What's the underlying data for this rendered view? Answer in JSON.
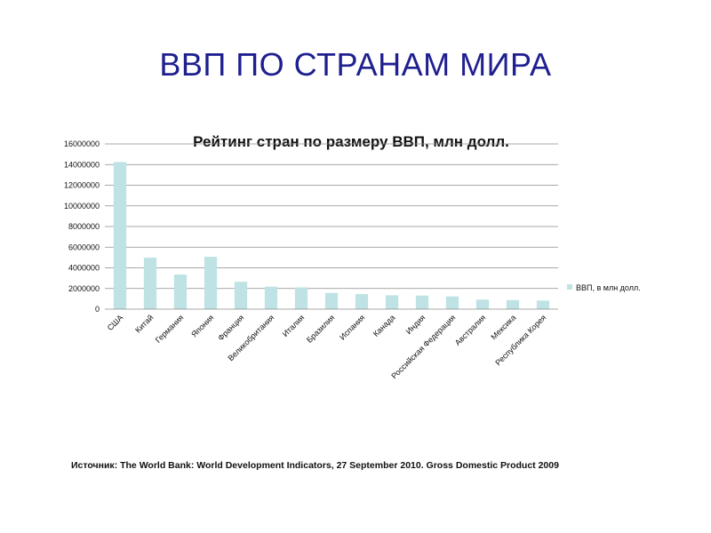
{
  "slide": {
    "title": "ВВП ПО СТРАНАМ МИРА",
    "source": "Источник: The World Bank: World Development Indicators, 27 September 2010. Gross Domestic Product 2009"
  },
  "colors": {
    "title": "#1f1f8f",
    "bar": "#bfe3e4",
    "grid": "#8c8c8c",
    "text": "#111111"
  },
  "chart_data": {
    "type": "bar",
    "title": "Рейтинг стран по размеру ВВП,  млн долл.",
    "xlabel": "",
    "ylabel": "",
    "ylim": [
      0,
      16000000
    ],
    "yticks": [
      0,
      2000000,
      4000000,
      6000000,
      8000000,
      10000000,
      12000000,
      14000000,
      16000000
    ],
    "ytick_labels": [
      "0",
      "2000000",
      "4000000",
      "6000000",
      "8000000",
      "10000000",
      "12000000",
      "14000000",
      "16000000"
    ],
    "grid": true,
    "legend_position": "right",
    "categories": [
      "США",
      "Китай",
      "Германия",
      "Япония",
      "Франция",
      "Великобритания",
      "Италия",
      "Бразилия",
      "Испания",
      "Канада",
      "Индия",
      "Российская Федерация",
      "Австралия",
      "Мексика",
      "Республика Корея"
    ],
    "series": [
      {
        "name": "ВВП, в млн долл.",
        "values": [
          14250000,
          4985000,
          3350000,
          5070000,
          2650000,
          2180000,
          2110000,
          1570000,
          1460000,
          1340000,
          1310000,
          1230000,
          925000,
          875000,
          830000
        ]
      }
    ]
  }
}
